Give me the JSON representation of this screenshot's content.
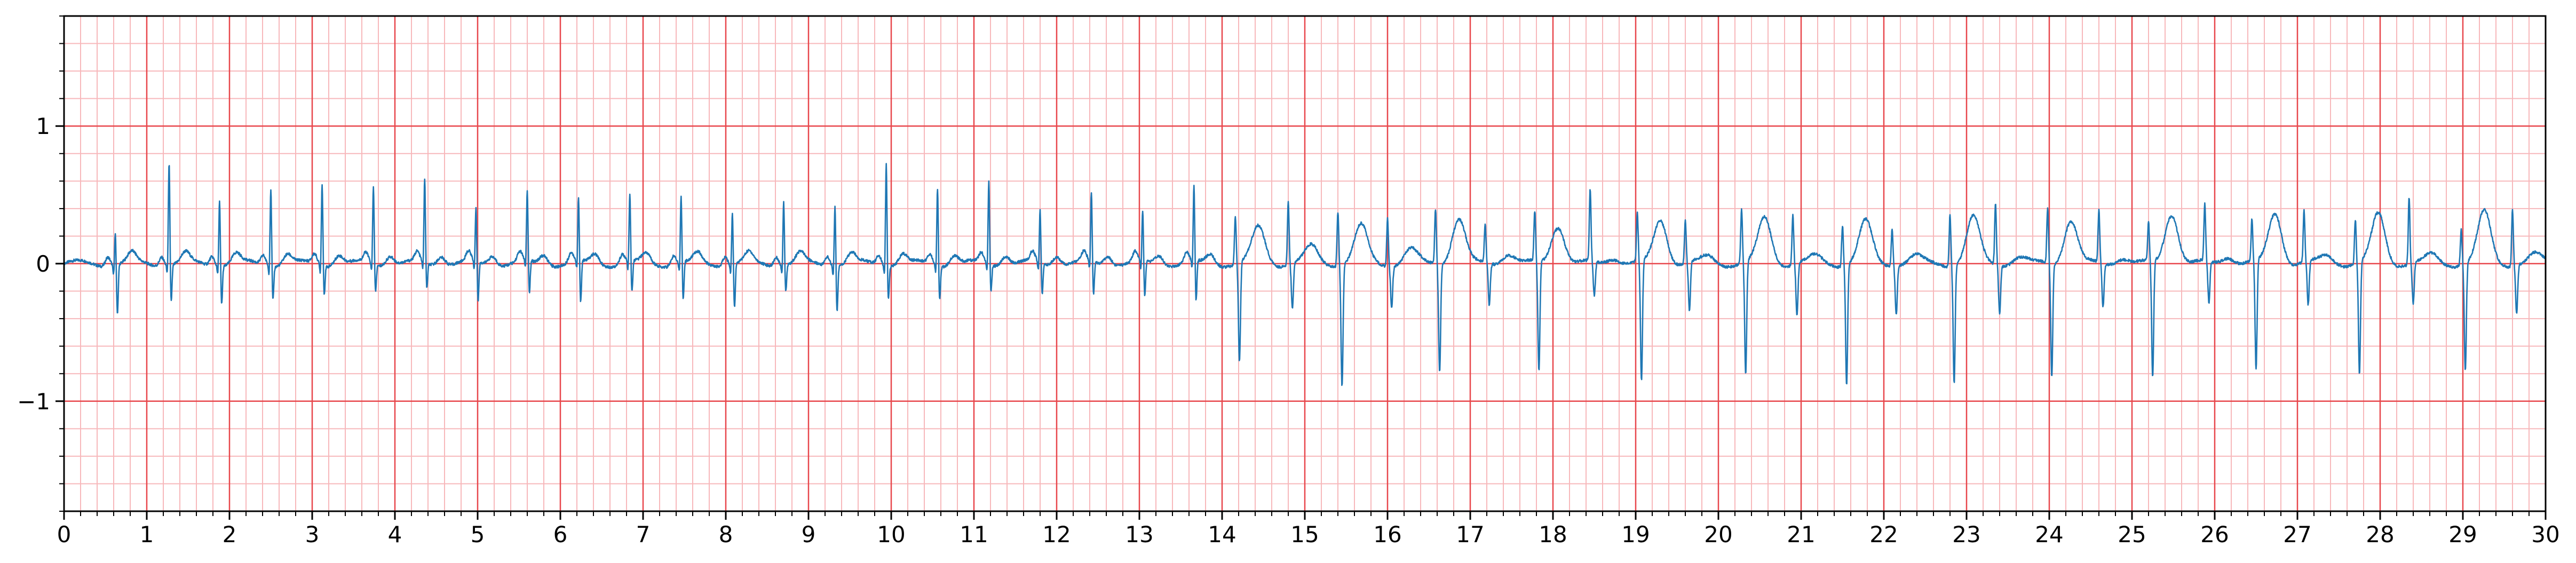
{
  "chart_data": {
    "type": "line",
    "title": "",
    "xlabel": "",
    "ylabel": "",
    "xlim": [
      0,
      30
    ],
    "ylim": [
      -1.8,
      1.8
    ],
    "x_ticks": [
      0,
      1,
      2,
      3,
      4,
      5,
      6,
      7,
      8,
      9,
      10,
      11,
      12,
      13,
      14,
      15,
      16,
      17,
      18,
      19,
      20,
      21,
      22,
      23,
      24,
      25,
      26,
      27,
      28,
      29,
      30
    ],
    "x_tick_labels": [
      "0",
      "1",
      "2",
      "3",
      "4",
      "5",
      "6",
      "7",
      "8",
      "9",
      "10",
      "11",
      "12",
      "13",
      "14",
      "15",
      "16",
      "17",
      "18",
      "19",
      "20",
      "21",
      "22",
      "23",
      "24",
      "25",
      "26",
      "27",
      "28",
      "29",
      "30"
    ],
    "y_ticks": [
      1,
      0,
      -1
    ],
    "y_tick_labels": [
      "1",
      "0",
      "−1"
    ],
    "grid": true,
    "grid_major_step_x": 1,
    "grid_minor_step_x": 0.2,
    "grid_major_step_y": 1,
    "grid_minor_step_y": 0.2,
    "colors": {
      "signal": "#1f77b4",
      "major_grid": "#e8474c",
      "minor_grid": "#f7b8bb",
      "axes": "#000000"
    },
    "series": [
      {
        "beats_segment_1": {
          "t_range": [
            0,
            14
          ],
          "r_peak_times": [
            0.62,
            1.27,
            1.88,
            2.5,
            3.12,
            3.74,
            4.36,
            4.98,
            5.6,
            6.22,
            6.84,
            7.46,
            8.08,
            8.7,
            9.32,
            9.94,
            10.56,
            11.18,
            11.8,
            12.42,
            13.04,
            13.66
          ],
          "r_peak_values": [
            0.24,
            0.76,
            0.49,
            0.58,
            0.61,
            0.58,
            0.62,
            0.4,
            0.52,
            0.47,
            0.5,
            0.5,
            0.38,
            0.47,
            0.45,
            0.76,
            0.58,
            0.61,
            0.39,
            0.52,
            0.38,
            0.57
          ],
          "s_trough_values": [
            -0.36,
            -0.27,
            -0.28,
            -0.25,
            -0.21,
            -0.2,
            -0.19,
            -0.29,
            -0.24,
            -0.31,
            -0.23,
            -0.28,
            -0.32,
            -0.2,
            -0.33,
            -0.25,
            -0.25,
            -0.2,
            -0.22,
            -0.24,
            -0.26,
            -0.3
          ]
        },
        "beats_segment_2": {
          "t_range": [
            14,
            30
          ],
          "r_peak_times": [
            14.16,
            14.8,
            15.4,
            16.0,
            16.58,
            17.18,
            17.78,
            18.45,
            19.02,
            19.6,
            20.28,
            20.9,
            21.5,
            22.1,
            22.8,
            23.35,
            23.98,
            24.6,
            25.2,
            25.88,
            26.45,
            27.08,
            27.7,
            28.35,
            28.98,
            29.6
          ],
          "r_peak_values": [
            0.35,
            0.46,
            0.4,
            0.35,
            0.4,
            0.28,
            0.36,
            0.52,
            0.35,
            0.32,
            0.4,
            0.36,
            0.3,
            0.28,
            0.38,
            0.45,
            0.4,
            0.38,
            0.28,
            0.42,
            0.3,
            0.38,
            0.32,
            0.49,
            0.27,
            0.42
          ],
          "q_trough_values": [
            -0.72,
            -0.32,
            -0.88,
            -0.3,
            -0.78,
            -0.3,
            -0.8,
            -0.25,
            -0.88,
            -0.35,
            -0.82,
            -0.38,
            -0.88,
            -0.35,
            -0.85,
            -0.35,
            -0.82,
            -0.32,
            -0.85,
            -0.3,
            -0.8,
            -0.32,
            -0.82,
            -0.3,
            -0.78,
            -0.35
          ],
          "t_wave_values": [
            0.26,
            0.12,
            0.27,
            0.1,
            0.33,
            0.08,
            0.28,
            0.05,
            0.32,
            0.05,
            0.33,
            0.05,
            0.3,
            0.05,
            0.33,
            0.05,
            0.32,
            0.05,
            0.37,
            0.06,
            0.37,
            0.06,
            0.36,
            0.06,
            0.37,
            0.06
          ]
        }
      }
    ]
  }
}
